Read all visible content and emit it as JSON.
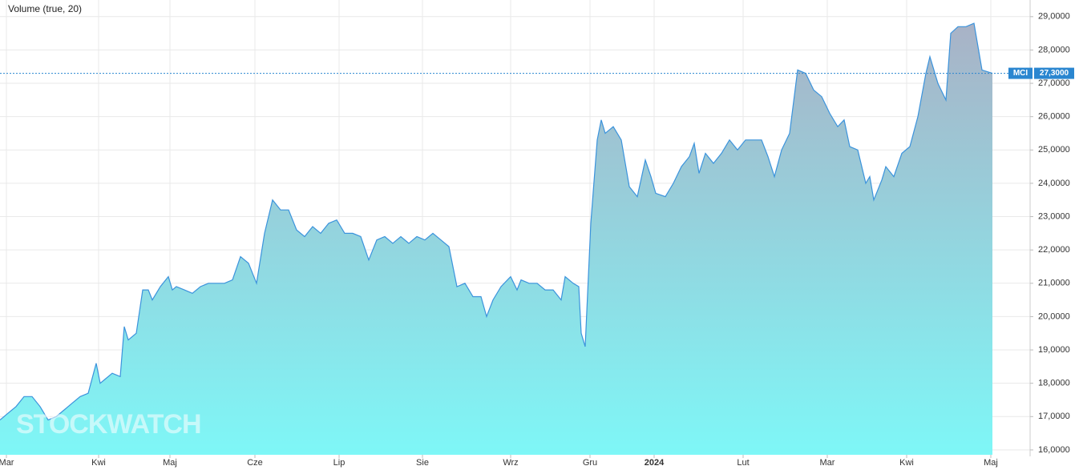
{
  "chart_data": {
    "type": "area",
    "title": "Volume (true, 20)",
    "watermark": "STOCKWATCH",
    "symbol": "MCI",
    "last_price": {
      "value": 27.3,
      "label": "27,3000"
    },
    "color": "#3b93dc",
    "grid": true,
    "x": [
      0,
      10,
      20,
      30,
      40,
      50,
      60,
      70,
      80,
      90,
      100,
      110,
      120,
      125,
      130,
      140,
      150,
      155,
      160,
      170,
      178,
      185,
      190,
      200,
      210,
      215,
      220,
      230,
      240,
      250,
      260,
      270,
      280,
      290,
      300,
      310,
      320,
      330,
      340,
      350,
      360,
      370,
      380,
      390,
      400,
      410,
      420,
      430,
      440,
      450,
      460,
      470,
      480,
      490,
      500,
      510,
      520,
      530,
      540,
      550,
      560,
      570,
      580,
      590,
      600,
      607,
      615,
      625,
      637,
      645,
      650,
      660,
      670,
      680,
      690,
      700,
      705,
      715,
      722,
      725,
      730,
      737,
      745,
      750,
      755,
      765,
      775,
      785,
      795,
      805,
      812,
      818,
      830,
      840,
      850,
      860,
      866,
      872,
      880,
      890,
      900,
      910,
      920,
      930,
      940,
      950,
      958,
      966,
      975,
      985,
      995,
      1005,
      1015,
      1025,
      1035,
      1045,
      1053,
      1060,
      1070,
      1080,
      1085,
      1090,
      1100,
      1105,
      1115,
      1125,
      1135,
      1145,
      1155,
      1160,
      1170,
      1180,
      1186,
      1195,
      1205,
      1215,
      1225,
      1238
    ],
    "values": [
      16.9,
      17.1,
      17.3,
      17.6,
      17.6,
      17.3,
      16.9,
      17.0,
      17.2,
      17.4,
      17.6,
      17.7,
      18.6,
      18.0,
      18.1,
      18.3,
      18.2,
      19.7,
      19.3,
      19.5,
      20.8,
      20.8,
      20.5,
      20.9,
      21.2,
      20.8,
      20.9,
      20.8,
      20.7,
      20.9,
      21.0,
      21.0,
      21.0,
      21.1,
      21.8,
      21.6,
      21.0,
      22.5,
      23.5,
      23.2,
      23.2,
      22.6,
      22.4,
      22.7,
      22.5,
      22.8,
      22.9,
      22.5,
      22.5,
      22.4,
      21.7,
      22.3,
      22.4,
      22.2,
      22.4,
      22.2,
      22.4,
      22.3,
      22.5,
      22.3,
      22.1,
      20.9,
      21.0,
      20.6,
      20.6,
      20.0,
      20.5,
      20.9,
      21.2,
      20.8,
      21.1,
      21.0,
      21.0,
      20.8,
      20.8,
      20.5,
      21.2,
      21.0,
      20.9,
      19.5,
      19.1,
      22.8,
      25.3,
      25.9,
      25.5,
      25.7,
      25.3,
      23.9,
      23.6,
      24.7,
      24.2,
      23.7,
      23.6,
      24.0,
      24.5,
      24.8,
      25.2,
      24.3,
      24.9,
      24.6,
      24.9,
      25.3,
      25.0,
      25.3,
      25.3,
      25.3,
      24.8,
      24.2,
      25.0,
      25.5,
      27.4,
      27.3,
      26.8,
      26.6,
      26.1,
      25.7,
      25.9,
      25.1,
      25.0,
      24.0,
      24.2,
      23.5,
      24.1,
      24.5,
      24.2,
      24.9,
      25.1,
      26.0,
      27.3,
      27.8,
      27.0,
      26.5,
      28.5,
      28.7,
      28.7,
      28.8,
      27.4,
      27.3
    ],
    "xlim": [
      0,
      1285
    ],
    "xticks": [
      {
        "value": 8,
        "label": "Mar"
      },
      {
        "value": 123,
        "label": "Kwi"
      },
      {
        "value": 212,
        "label": "Maj"
      },
      {
        "value": 318,
        "label": "Cze"
      },
      {
        "value": 423,
        "label": "Lip"
      },
      {
        "value": 527,
        "label": "Sie"
      },
      {
        "value": 637,
        "label": "Wrz"
      },
      {
        "value": 736,
        "label": "Gru"
      },
      {
        "value": 816,
        "label": "2024"
      },
      {
        "value": 927,
        "label": "Lut"
      },
      {
        "value": 1032,
        "label": "Mar"
      },
      {
        "value": 1131,
        "label": "Kwi"
      },
      {
        "value": 1236,
        "label": "Maj"
      }
    ],
    "ylim": [
      15.95,
      29.5
    ],
    "yticks": [
      {
        "value": 16,
        "label": "16,0000"
      },
      {
        "value": 17,
        "label": "17,0000"
      },
      {
        "value": 18,
        "label": "18,0000"
      },
      {
        "value": 19,
        "label": "19,0000"
      },
      {
        "value": 20,
        "label": "20,0000"
      },
      {
        "value": 21,
        "label": "21,0000"
      },
      {
        "value": 22,
        "label": "22,0000"
      },
      {
        "value": 23,
        "label": "23,0000"
      },
      {
        "value": 24,
        "label": "24,0000"
      },
      {
        "value": 25,
        "label": "25,0000"
      },
      {
        "value": 26,
        "label": "26,0000"
      },
      {
        "value": 27,
        "label": "27,0000"
      },
      {
        "value": 28,
        "label": "28,0000"
      },
      {
        "value": 29,
        "label": "29,0000"
      }
    ]
  }
}
